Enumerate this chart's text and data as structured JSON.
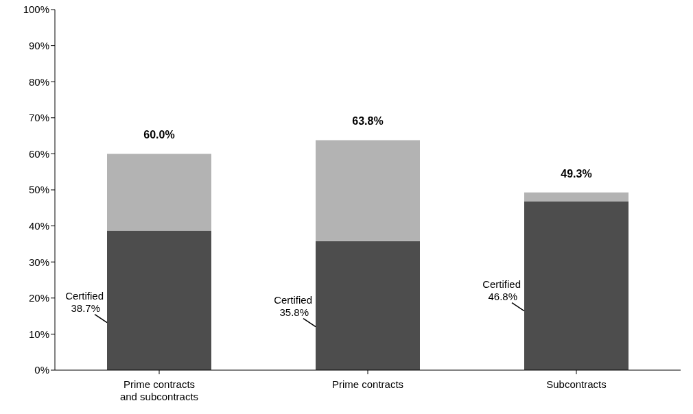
{
  "chart_data": {
    "type": "bar",
    "stacked": true,
    "categories": [
      "Prime contracts and subcontracts",
      "Prime contracts",
      "Subcontracts"
    ],
    "series": [
      {
        "name": "Certified",
        "color": "#4d4d4d",
        "values": [
          38.7,
          35.8,
          46.8
        ],
        "value_labels": [
          "38.7%",
          "35.8%",
          "46.8%"
        ]
      },
      {
        "color": "#b3b3b3",
        "values": [
          21.3,
          28.0,
          2.5
        ]
      }
    ],
    "totals": [
      "60.0%",
      "63.8%",
      "49.3%"
    ],
    "ylim": [
      0,
      100
    ],
    "yticks": [
      {
        "value": 0,
        "label": "0%"
      },
      {
        "value": 10,
        "label": "10%"
      },
      {
        "value": 20,
        "label": "20%"
      },
      {
        "value": 30,
        "label": "30%"
      },
      {
        "value": 40,
        "label": "40%"
      },
      {
        "value": 50,
        "label": "50%"
      },
      {
        "value": 60,
        "label": "60%"
      },
      {
        "value": 70,
        "label": "70%"
      },
      {
        "value": 80,
        "label": "80%"
      },
      {
        "value": 90,
        "label": "90%"
      },
      {
        "value": 100,
        "label": "100%"
      }
    ],
    "grid": false,
    "legend": false
  }
}
